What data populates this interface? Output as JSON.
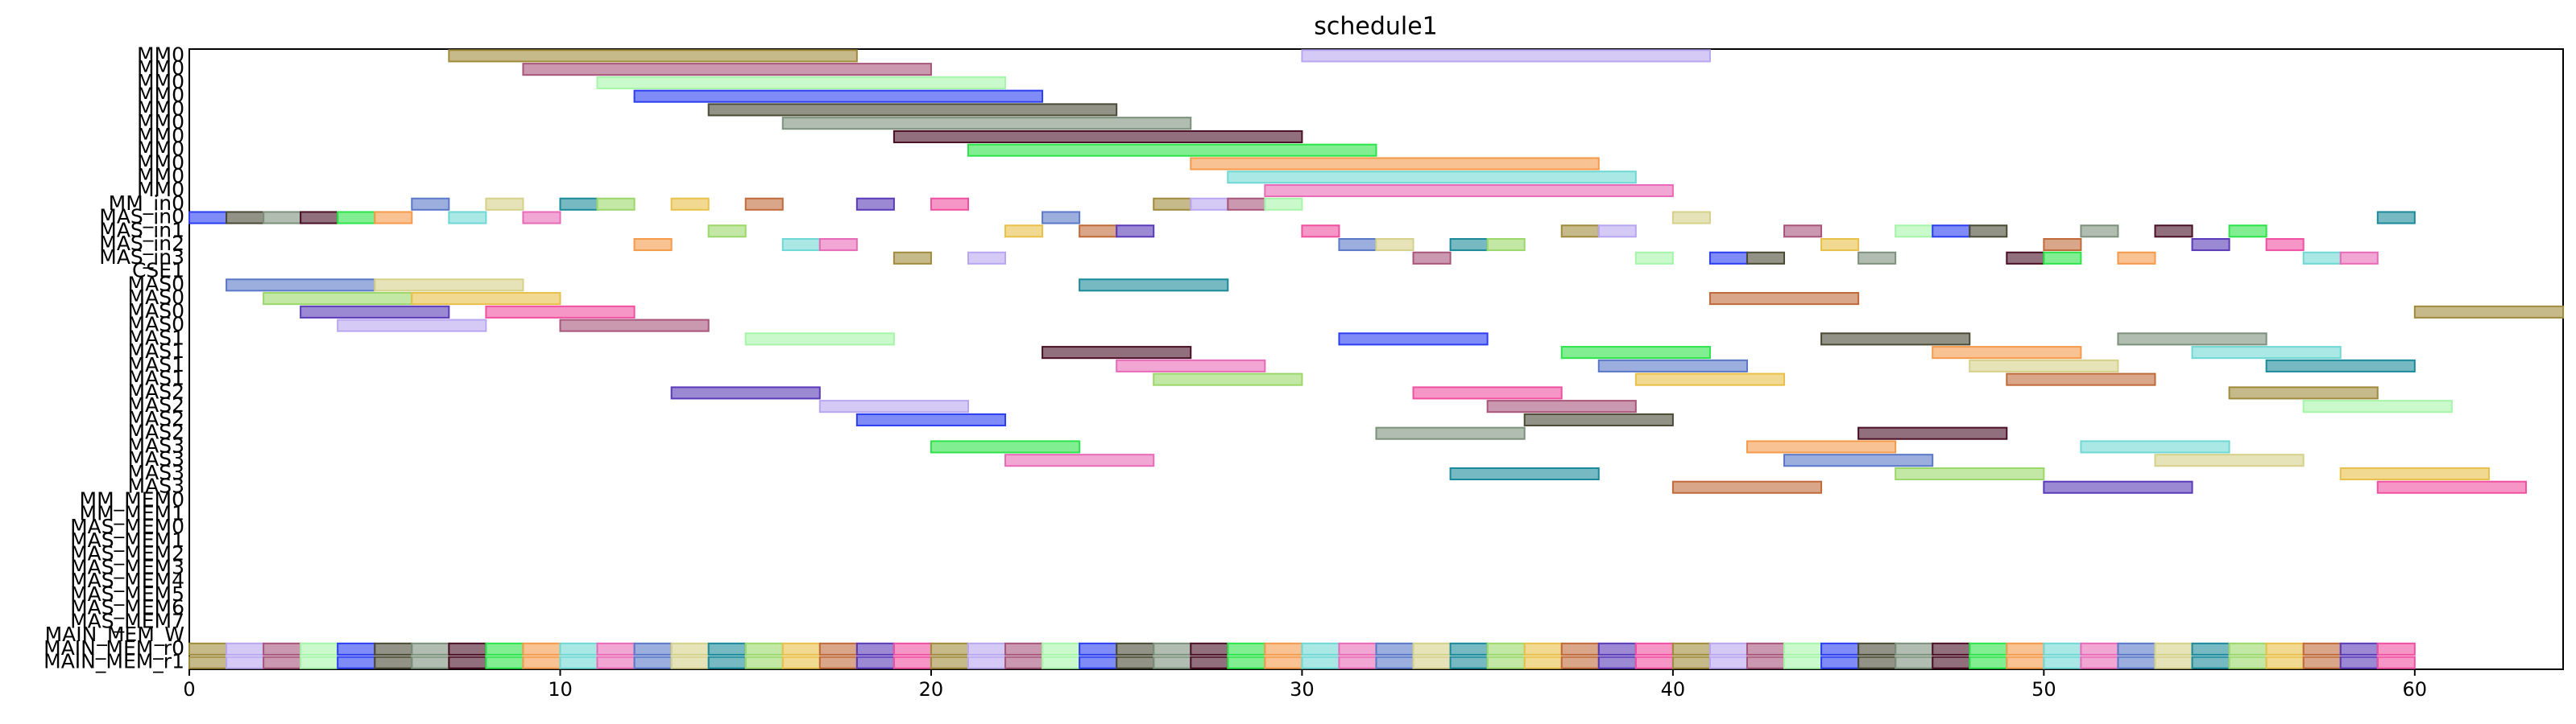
{
  "chart_data": {
    "type": "gantt",
    "title": "schedule1",
    "categories": [
      "MM0",
      "MM0",
      "MM0",
      "MM0",
      "MM0",
      "MM0",
      "MM0",
      "MM0",
      "MM0",
      "MM0",
      "MM0",
      "MM_in0",
      "MAS_in0",
      "MAS_in1",
      "MAS_in2",
      "MAS_in3",
      "CSE1",
      "MAS0",
      "MAS0",
      "MAS0",
      "MAS0",
      "MAS1",
      "MAS1",
      "MAS1",
      "MAS1",
      "MAS2",
      "MAS2",
      "MAS2",
      "MAS2",
      "MAS3",
      "MAS3",
      "MAS3",
      "MAS3",
      "MM_MEM0",
      "MM_MEM1",
      "MAS_MEM0",
      "MAS_MEM1",
      "MAS_MEM2",
      "MAS_MEM3",
      "MAS_MEM4",
      "MAS_MEM5",
      "MAS_MEM6",
      "MAS_MEM7",
      "MAIN_MEM_W",
      "MAIN_MEM_r0",
      "MAIN_MEM_r1"
    ],
    "bars": [
      [
        [
          7,
          18
        ],
        [
          30,
          41
        ]
      ],
      [
        [
          9,
          20
        ]
      ],
      [
        [
          11,
          22
        ]
      ],
      [
        [
          12,
          23
        ]
      ],
      [
        [
          14,
          25
        ]
      ],
      [
        [
          16,
          27
        ]
      ],
      [
        [
          19,
          30
        ]
      ],
      [
        [
          21,
          32
        ]
      ],
      [
        [
          27,
          38
        ]
      ],
      [
        [
          28,
          39
        ]
      ],
      [
        [
          29,
          40
        ]
      ],
      [
        [
          6,
          7
        ],
        [
          8,
          9
        ],
        [
          10,
          11
        ],
        [
          11,
          12
        ],
        [
          13,
          14
        ],
        [
          15,
          16
        ],
        [
          18,
          19
        ],
        [
          20,
          21
        ],
        [
          26,
          27
        ],
        [
          27,
          28
        ],
        [
          28,
          29
        ],
        [
          29,
          30
        ]
      ],
      [
        [
          0,
          1
        ],
        [
          1,
          2
        ],
        [
          2,
          3
        ],
        [
          3,
          4
        ],
        [
          4,
          5
        ],
        [
          5,
          6
        ],
        [
          7,
          8
        ],
        [
          9,
          10
        ],
        [
          23,
          24
        ],
        [
          40,
          41
        ],
        [
          59,
          60
        ]
      ],
      [
        [
          14,
          15
        ],
        [
          22,
          23
        ],
        [
          24,
          25
        ],
        [
          25,
          26
        ],
        [
          30,
          31
        ],
        [
          37,
          38
        ],
        [
          38,
          39
        ],
        [
          43,
          44
        ],
        [
          46,
          47
        ],
        [
          47,
          48
        ],
        [
          48,
          49
        ],
        [
          51,
          52
        ],
        [
          53,
          54
        ],
        [
          55,
          56
        ]
      ],
      [
        [
          12,
          13
        ],
        [
          16,
          17
        ],
        [
          17,
          18
        ],
        [
          31,
          32
        ],
        [
          32,
          33
        ],
        [
          34,
          35
        ],
        [
          35,
          36
        ],
        [
          44,
          45
        ],
        [
          50,
          51
        ],
        [
          54,
          55
        ],
        [
          56,
          57
        ]
      ],
      [
        [
          19,
          20
        ],
        [
          21,
          22
        ],
        [
          33,
          34
        ],
        [
          39,
          40
        ],
        [
          41,
          42
        ],
        [
          42,
          43
        ],
        [
          45,
          46
        ],
        [
          49,
          50
        ],
        [
          50,
          51
        ],
        [
          52,
          53
        ],
        [
          57,
          58
        ],
        [
          58,
          59
        ]
      ],
      [],
      [
        [
          1,
          5
        ],
        [
          5,
          9
        ],
        [
          24,
          28
        ]
      ],
      [
        [
          2,
          6
        ],
        [
          6,
          10
        ],
        [
          41,
          45
        ]
      ],
      [
        [
          3,
          7
        ],
        [
          8,
          12
        ],
        [
          60,
          64
        ]
      ],
      [
        [
          4,
          8
        ],
        [
          10,
          14
        ]
      ],
      [
        [
          15,
          19
        ],
        [
          31,
          35
        ],
        [
          44,
          48
        ],
        [
          52,
          56
        ]
      ],
      [
        [
          23,
          27
        ],
        [
          37,
          41
        ],
        [
          47,
          51
        ],
        [
          54,
          58
        ]
      ],
      [
        [
          25,
          29
        ],
        [
          38,
          42
        ],
        [
          48,
          52
        ],
        [
          56,
          60
        ]
      ],
      [
        [
          26,
          30
        ],
        [
          39,
          43
        ],
        [
          49,
          53
        ]
      ],
      [
        [
          13,
          17
        ],
        [
          33,
          37
        ],
        [
          55,
          59
        ]
      ],
      [
        [
          17,
          21
        ],
        [
          35,
          39
        ],
        [
          57,
          61
        ]
      ],
      [
        [
          18,
          22
        ],
        [
          36,
          40
        ]
      ],
      [
        [
          32,
          36
        ],
        [
          45,
          49
        ]
      ],
      [
        [
          20,
          24
        ],
        [
          42,
          46
        ],
        [
          51,
          55
        ]
      ],
      [
        [
          22,
          26
        ],
        [
          43,
          47
        ],
        [
          53,
          57
        ]
      ],
      [
        [
          34,
          38
        ],
        [
          46,
          50
        ],
        [
          58,
          62
        ]
      ],
      [
        [
          40,
          44
        ],
        [
          50,
          54
        ],
        [
          59,
          63
        ]
      ],
      [],
      [],
      [],
      [],
      [],
      [],
      [],
      [],
      [],
      [],
      [],
      [
        [
          0,
          1
        ],
        [
          1,
          2
        ],
        [
          2,
          3
        ],
        [
          3,
          4
        ],
        [
          4,
          5
        ],
        [
          5,
          6
        ],
        [
          6,
          7
        ],
        [
          7,
          8
        ],
        [
          8,
          9
        ],
        [
          9,
          10
        ],
        [
          10,
          11
        ],
        [
          11,
          12
        ],
        [
          12,
          13
        ],
        [
          13,
          14
        ],
        [
          14,
          15
        ],
        [
          15,
          16
        ],
        [
          16,
          17
        ],
        [
          17,
          18
        ],
        [
          18,
          19
        ],
        [
          19,
          20
        ],
        [
          20,
          21
        ],
        [
          21,
          22
        ],
        [
          22,
          23
        ],
        [
          23,
          24
        ],
        [
          24,
          25
        ],
        [
          25,
          26
        ],
        [
          26,
          27
        ],
        [
          27,
          28
        ],
        [
          28,
          29
        ],
        [
          29,
          30
        ],
        [
          30,
          31
        ],
        [
          31,
          32
        ],
        [
          32,
          33
        ],
        [
          33,
          34
        ],
        [
          34,
          35
        ],
        [
          35,
          36
        ],
        [
          36,
          37
        ],
        [
          37,
          38
        ],
        [
          38,
          39
        ],
        [
          39,
          40
        ],
        [
          40,
          41
        ],
        [
          41,
          42
        ],
        [
          42,
          43
        ],
        [
          43,
          44
        ],
        [
          44,
          45
        ],
        [
          45,
          46
        ],
        [
          46,
          47
        ],
        [
          47,
          48
        ],
        [
          48,
          49
        ],
        [
          49,
          50
        ],
        [
          50,
          51
        ],
        [
          51,
          52
        ],
        [
          52,
          53
        ],
        [
          53,
          54
        ],
        [
          54,
          55
        ],
        [
          55,
          56
        ],
        [
          56,
          57
        ],
        [
          57,
          58
        ],
        [
          58,
          59
        ],
        [
          59,
          60
        ]
      ],
      [
        [
          0,
          1
        ],
        [
          1,
          2
        ],
        [
          2,
          3
        ],
        [
          3,
          4
        ],
        [
          4,
          5
        ],
        [
          5,
          6
        ],
        [
          6,
          7
        ],
        [
          7,
          8
        ],
        [
          8,
          9
        ],
        [
          9,
          10
        ],
        [
          10,
          11
        ],
        [
          11,
          12
        ],
        [
          12,
          13
        ],
        [
          13,
          14
        ],
        [
          14,
          15
        ],
        [
          15,
          16
        ],
        [
          16,
          17
        ],
        [
          17,
          18
        ],
        [
          18,
          19
        ],
        [
          19,
          20
        ],
        [
          20,
          21
        ],
        [
          21,
          22
        ],
        [
          22,
          23
        ],
        [
          23,
          24
        ],
        [
          24,
          25
        ],
        [
          25,
          26
        ],
        [
          26,
          27
        ],
        [
          27,
          28
        ],
        [
          28,
          29
        ],
        [
          29,
          30
        ],
        [
          30,
          31
        ],
        [
          31,
          32
        ],
        [
          32,
          33
        ],
        [
          33,
          34
        ],
        [
          34,
          35
        ],
        [
          35,
          36
        ],
        [
          36,
          37
        ],
        [
          37,
          38
        ],
        [
          38,
          39
        ],
        [
          39,
          40
        ],
        [
          40,
          41
        ],
        [
          41,
          42
        ],
        [
          42,
          43
        ],
        [
          43,
          44
        ],
        [
          44,
          45
        ],
        [
          45,
          46
        ],
        [
          46,
          47
        ],
        [
          47,
          48
        ],
        [
          48,
          49
        ],
        [
          49,
          50
        ],
        [
          50,
          51
        ],
        [
          51,
          52
        ],
        [
          52,
          53
        ],
        [
          53,
          54
        ],
        [
          54,
          55
        ],
        [
          55,
          56
        ],
        [
          56,
          57
        ],
        [
          57,
          58
        ],
        [
          58,
          59
        ],
        [
          59,
          60
        ]
      ]
    ],
    "colors": [
      "#a08a3c",
      "#b9a6f0",
      "#a8557a",
      "#a6f5a9",
      "#2a3ef0",
      "#4a4a35",
      "#7c917c",
      "#4a0f25",
      "#2de34a",
      "#f59a4a",
      "#6fd8d4",
      "#e86ab8",
      "#5a78c8",
      "#d5d08a",
      "#1a8a9a",
      "#9bd86a",
      "#e8c04a",
      "#c06a3a",
      "#5a3ab8",
      "#f050a0"
    ],
    "xlim": [
      0,
      64
    ],
    "xticks": [
      0,
      10,
      20,
      30,
      40,
      50,
      60
    ]
  }
}
